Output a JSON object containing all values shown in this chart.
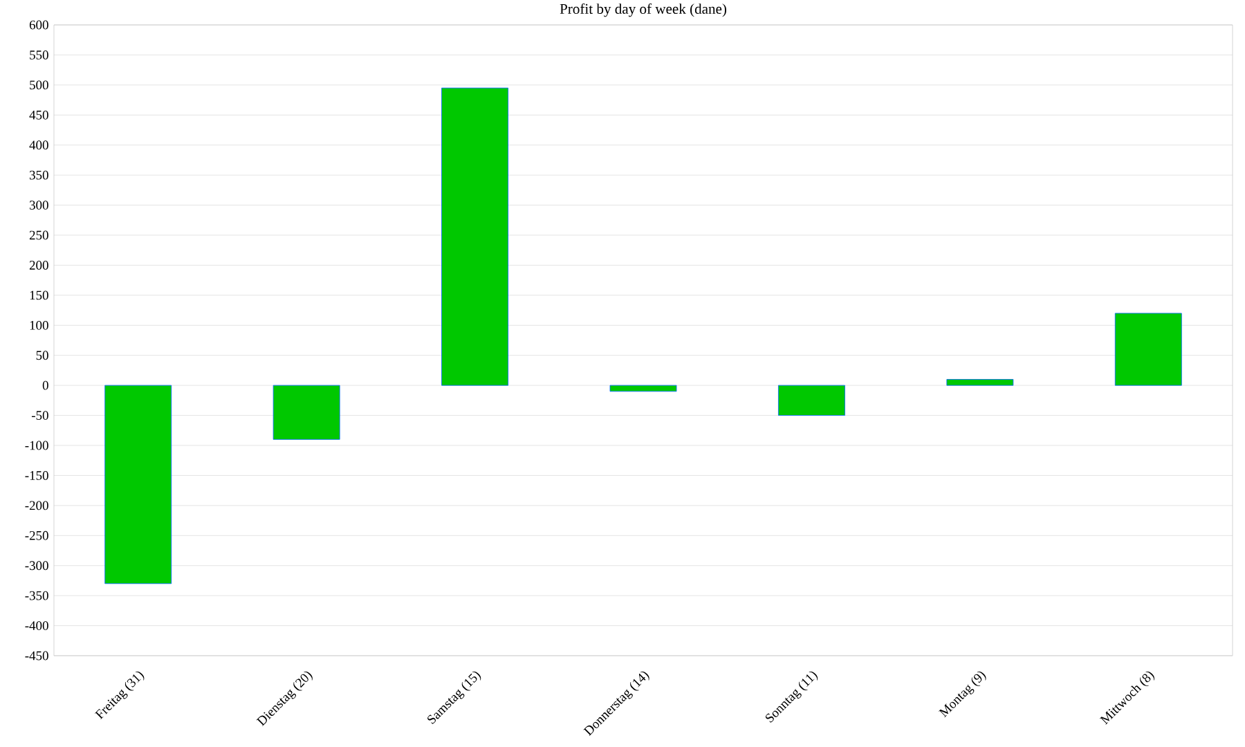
{
  "chart_data": {
    "type": "bar",
    "title": "Profit by day of week  (dane)",
    "categories": [
      "Freitag (31)",
      "Dienstag (20)",
      "Samstag (15)",
      "Donnerstag (14)",
      "Sonntag (11)",
      "Montag (9)",
      "Mittwoch (8)"
    ],
    "values": [
      -330,
      -90,
      495,
      -10,
      -50,
      10,
      120
    ],
    "color": "#00c800",
    "ylim": [
      -450,
      600
    ],
    "yticks": [
      -450,
      -400,
      -350,
      -300,
      -250,
      -200,
      -150,
      -100,
      -50,
      0,
      50,
      100,
      150,
      200,
      250,
      300,
      350,
      400,
      450,
      500,
      550,
      600
    ],
    "grid": "y"
  }
}
